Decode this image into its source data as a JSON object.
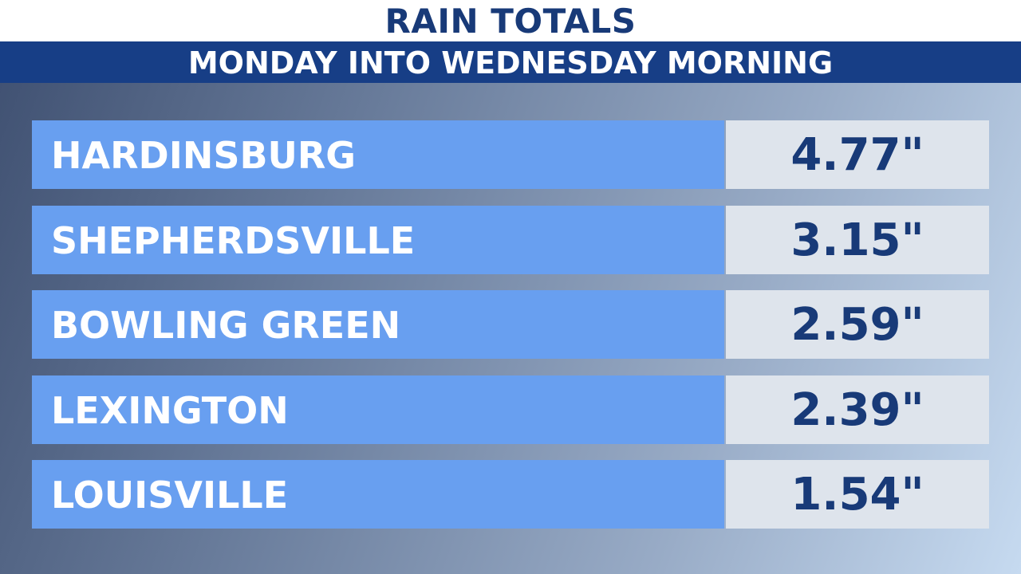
{
  "header": {
    "title": "RAIN TOTALS",
    "subtitle": "MONDAY INTO WEDNESDAY MORNING"
  },
  "table": {
    "rows": [
      [
        "HARDINSBURG",
        "4.77\""
      ],
      [
        "SHEPHERDSVILLE",
        "3.15\""
      ],
      [
        "BOWLING GREEN",
        "2.59\""
      ],
      [
        "LEXINGTON",
        "2.39\""
      ],
      [
        "LOUISVILLE",
        "1.54\""
      ]
    ]
  }
}
